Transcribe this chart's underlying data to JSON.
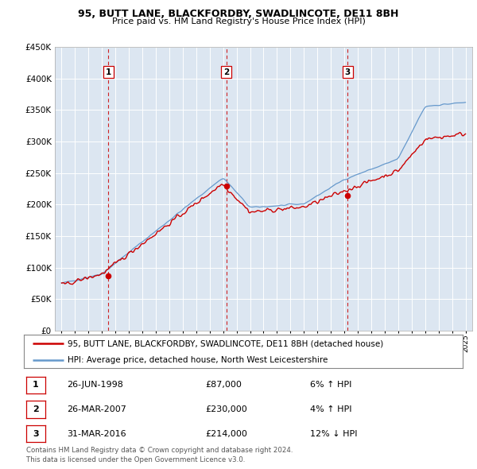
{
  "title1": "95, BUTT LANE, BLACKFORDBY, SWADLINCOTE, DE11 8BH",
  "title2": "Price paid vs. HM Land Registry's House Price Index (HPI)",
  "legend_line1": "95, BUTT LANE, BLACKFORDBY, SWADLINCOTE, DE11 8BH (detached house)",
  "legend_line2": "HPI: Average price, detached house, North West Leicestershire",
  "footer1": "Contains HM Land Registry data © Crown copyright and database right 2024.",
  "footer2": "This data is licensed under the Open Government Licence v3.0.",
  "sales": [
    {
      "num": 1,
      "date": "26-JUN-1998",
      "price": "£87,000",
      "pct": "6%",
      "dir": "↑",
      "year": 1998.48
    },
    {
      "num": 2,
      "date": "26-MAR-2007",
      "price": "£230,000",
      "pct": "4%",
      "dir": "↑",
      "year": 2007.23
    },
    {
      "num": 3,
      "date": "31-MAR-2016",
      "price": "£214,000",
      "pct": "12%",
      "dir": "↓",
      "year": 2016.25
    }
  ],
  "sale_values": [
    87000,
    230000,
    214000
  ],
  "vline_color": "#cc0000",
  "price_line_color": "#cc0000",
  "hpi_line_color": "#6699cc",
  "chart_bg_color": "#dce6f1",
  "background_color": "#ffffff",
  "grid_color": "#ffffff",
  "ylim": [
    0,
    450000
  ],
  "yticks": [
    0,
    50000,
    100000,
    150000,
    200000,
    250000,
    300000,
    350000,
    400000,
    450000
  ],
  "xmin": 1994.5,
  "xmax": 2025.5
}
